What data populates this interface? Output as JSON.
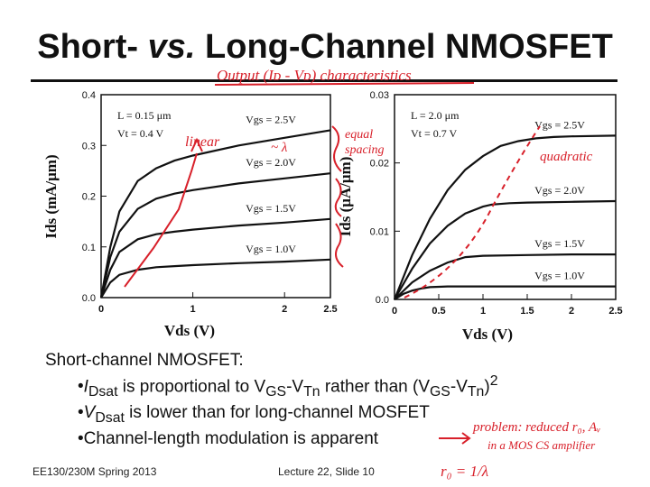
{
  "title": {
    "part1": "Short- ",
    "part2": "vs.",
    "part3": " Long-Channel NMOSFET"
  },
  "annotations": {
    "output": "Output (Iᴅ - Vᴅ) characteristics",
    "linear": "linear",
    "lambda": "~ λ",
    "equal": "equal",
    "spacing": "spacing",
    "quadratic": "quadratic",
    "problem": "problem: reduced r₀, Aᵥ",
    "cs": "in a MOS CS amplifier",
    "ro": "r₀ = 1/λ"
  },
  "chart_data": [
    {
      "type": "line",
      "name": "short-channel",
      "ylabel": "Ids (mA/μm)",
      "xlabel": "Vds (V)",
      "xticks": [
        "0",
        "1",
        "2",
        "2.5"
      ],
      "yticks": [
        "0.0",
        "0.1",
        "0.2",
        "0.3",
        "0.4"
      ],
      "xlim": [
        0,
        2.5
      ],
      "ylim": [
        0,
        0.4
      ],
      "params": {
        "L": "L = 0.15 μm",
        "Vt": "Vt = 0.4 V"
      },
      "series": [
        {
          "name": "Vgs = 2.5V",
          "label": "Vgs = 2.5V",
          "x": [
            0,
            0.1,
            0.2,
            0.4,
            0.6,
            0.8,
            1.0,
            1.5,
            2.0,
            2.5
          ],
          "y": [
            0,
            0.1,
            0.17,
            0.23,
            0.255,
            0.27,
            0.28,
            0.3,
            0.315,
            0.33
          ]
        },
        {
          "name": "Vgs = 2.0V",
          "label": "Vgs = 2.0V",
          "x": [
            0,
            0.1,
            0.2,
            0.4,
            0.6,
            0.8,
            1.0,
            1.5,
            2.0,
            2.5
          ],
          "y": [
            0,
            0.08,
            0.13,
            0.175,
            0.195,
            0.205,
            0.212,
            0.225,
            0.235,
            0.245
          ]
        },
        {
          "name": "Vgs = 1.5V",
          "label": "Vgs = 1.5V",
          "x": [
            0,
            0.1,
            0.2,
            0.4,
            0.6,
            0.8,
            1.0,
            1.5,
            2.0,
            2.5
          ],
          "y": [
            0,
            0.055,
            0.09,
            0.115,
            0.125,
            0.13,
            0.134,
            0.142,
            0.148,
            0.155
          ]
        },
        {
          "name": "Vgs = 1.0V",
          "label": "Vgs = 1.0V",
          "x": [
            0,
            0.1,
            0.2,
            0.4,
            0.6,
            0.8,
            1.0,
            1.5,
            2.0,
            2.5
          ],
          "y": [
            0,
            0.03,
            0.045,
            0.055,
            0.06,
            0.062,
            0.064,
            0.068,
            0.071,
            0.075
          ]
        }
      ]
    },
    {
      "type": "line",
      "name": "long-channel",
      "ylabel": "Ids (μA/μm)",
      "xlabel": "Vds (V)",
      "xticks": [
        "0",
        "0.5",
        "1",
        "1.5",
        "2",
        "2.5"
      ],
      "yticks": [
        "0.0",
        "0.01",
        "0.02",
        "0.03"
      ],
      "xlim": [
        0,
        2.5
      ],
      "ylim": [
        0,
        0.03
      ],
      "params": {
        "L": "L = 2.0 μm",
        "Vt": "Vt = 0.7 V"
      },
      "series": [
        {
          "name": "Vgs = 2.5V",
          "label": "Vgs = 2.5V",
          "x": [
            0,
            0.2,
            0.4,
            0.6,
            0.8,
            1.0,
            1.2,
            1.4,
            1.6,
            1.8,
            2.0,
            2.5
          ],
          "y": [
            0,
            0.0065,
            0.0118,
            0.016,
            0.019,
            0.021,
            0.0225,
            0.0232,
            0.0236,
            0.0238,
            0.0239,
            0.024
          ]
        },
        {
          "name": "Vgs = 2.0V",
          "label": "Vgs = 2.0V",
          "x": [
            0,
            0.2,
            0.4,
            0.6,
            0.8,
            1.0,
            1.1,
            1.3,
            1.5,
            2.0,
            2.5
          ],
          "y": [
            0,
            0.0045,
            0.0082,
            0.0108,
            0.0126,
            0.0136,
            0.0139,
            0.0141,
            0.0142,
            0.0143,
            0.0144
          ]
        },
        {
          "name": "Vgs = 1.5V",
          "label": "Vgs = 1.5V",
          "x": [
            0,
            0.2,
            0.4,
            0.6,
            0.8,
            1.0,
            1.5,
            2.0,
            2.5
          ],
          "y": [
            0,
            0.0025,
            0.0042,
            0.0054,
            0.0062,
            0.0064,
            0.0065,
            0.0066,
            0.0066
          ]
        },
        {
          "name": "Vgs = 1.0V",
          "label": "Vgs = 1.0V",
          "x": [
            0,
            0.1,
            0.2,
            0.3,
            0.4,
            0.6,
            1.0,
            1.5,
            2.0,
            2.5
          ],
          "y": [
            0,
            0.0008,
            0.0013,
            0.0016,
            0.0018,
            0.0019,
            0.0019,
            0.0019,
            0.0019,
            0.0019
          ]
        }
      ]
    }
  ],
  "body": {
    "heading": "Short-channel NMOSFET:",
    "b1_pre": "I",
    "b1_sub": "Dsat",
    "b1_mid": " is proportional to V",
    "b1_gs": "GS",
    "b1_dash": "-V",
    "b1_tn": "Tn",
    "b1_rest": " rather than (V",
    "b1_gs2": "GS",
    "b1_dash2": "-V",
    "b1_tn2": "Tn",
    "b1_close": ")",
    "b1_sq": "2",
    "b2_pre": "V",
    "b2_sub": "Dsat",
    "b2_rest": " is lower than for long-channel MOSFET",
    "b3": "Channel-length modulation is apparent"
  },
  "footer": {
    "course": "EE130/230M Spring 2013",
    "lecture": "Lecture 22, Slide 10"
  },
  "colors": {
    "ink": "#111111",
    "annotation": "#d8202a"
  }
}
